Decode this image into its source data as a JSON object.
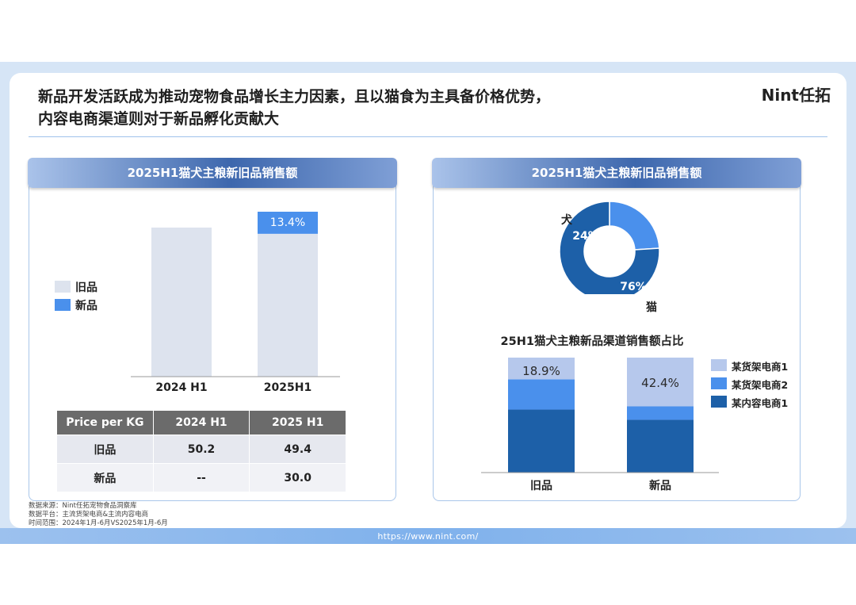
{
  "header": {
    "title_line1": "新品开发活跃成为推动宠物食品增长主力因素，且以猫食为主具备价格优势，",
    "title_line2": "内容电商渠道则对于新品孵化贡献大",
    "brand": "Nint任拓"
  },
  "left_panel": {
    "title": "2025H1猫犬主粮新旧品销售额",
    "legend": [
      "旧品",
      "新品"
    ],
    "table": {
      "headers": [
        "Price per KG",
        "2024 H1",
        "2025 H1"
      ],
      "rows": [
        [
          "旧品",
          "50.2",
          "49.4"
        ],
        [
          "新品",
          "--",
          "30.0"
        ]
      ]
    }
  },
  "right_panel": {
    "title": "2025H1猫犬主粮新旧品销售额",
    "subtitle": "25H1猫犬主粮新品渠道销售额占比",
    "legend": [
      "某货架电商1",
      "某货架电商2",
      "某内容电商1"
    ]
  },
  "colors": {
    "old": "#dde3ee",
    "new": "#4a90ec",
    "dog": "#4a90ec",
    "cat": "#1d60a8",
    "shelf1": "#b6c8ec",
    "shelf2": "#4a90ec",
    "content1": "#1d60a8"
  },
  "chart_data": [
    {
      "type": "bar",
      "stacked": true,
      "categories": [
        "2024 H1",
        "2025H1"
      ],
      "series": [
        {
          "name": "旧品",
          "values": [
            100,
            86.6
          ]
        },
        {
          "name": "新品",
          "values": [
            0,
            13.4
          ]
        }
      ],
      "data_labels": [
        "",
        "13.4%"
      ]
    },
    {
      "type": "pie",
      "donut": true,
      "labels": [
        "犬",
        "猫"
      ],
      "values": [
        24,
        76
      ],
      "data_labels": [
        "24%",
        "76%"
      ]
    },
    {
      "type": "bar",
      "stacked": true,
      "categories": [
        "旧品",
        "新品"
      ],
      "series": [
        {
          "name": "某内容电商1",
          "values": [
            54.8,
            45.9
          ]
        },
        {
          "name": "某货架电商2",
          "values": [
            26.3,
            11.7
          ]
        },
        {
          "name": "某货架电商1",
          "values": [
            18.9,
            42.4
          ]
        }
      ],
      "data_labels": [
        "18.9%",
        "42.4%"
      ]
    }
  ],
  "footer": {
    "source_lines": [
      "数据来源：Nint任拓宠物食品洞察库",
      "数据平台：主流货架电商&主流内容电商",
      "时间范围：2024年1月-6月VS2025年1月-6月"
    ],
    "url": "https://www.nint.com/"
  }
}
